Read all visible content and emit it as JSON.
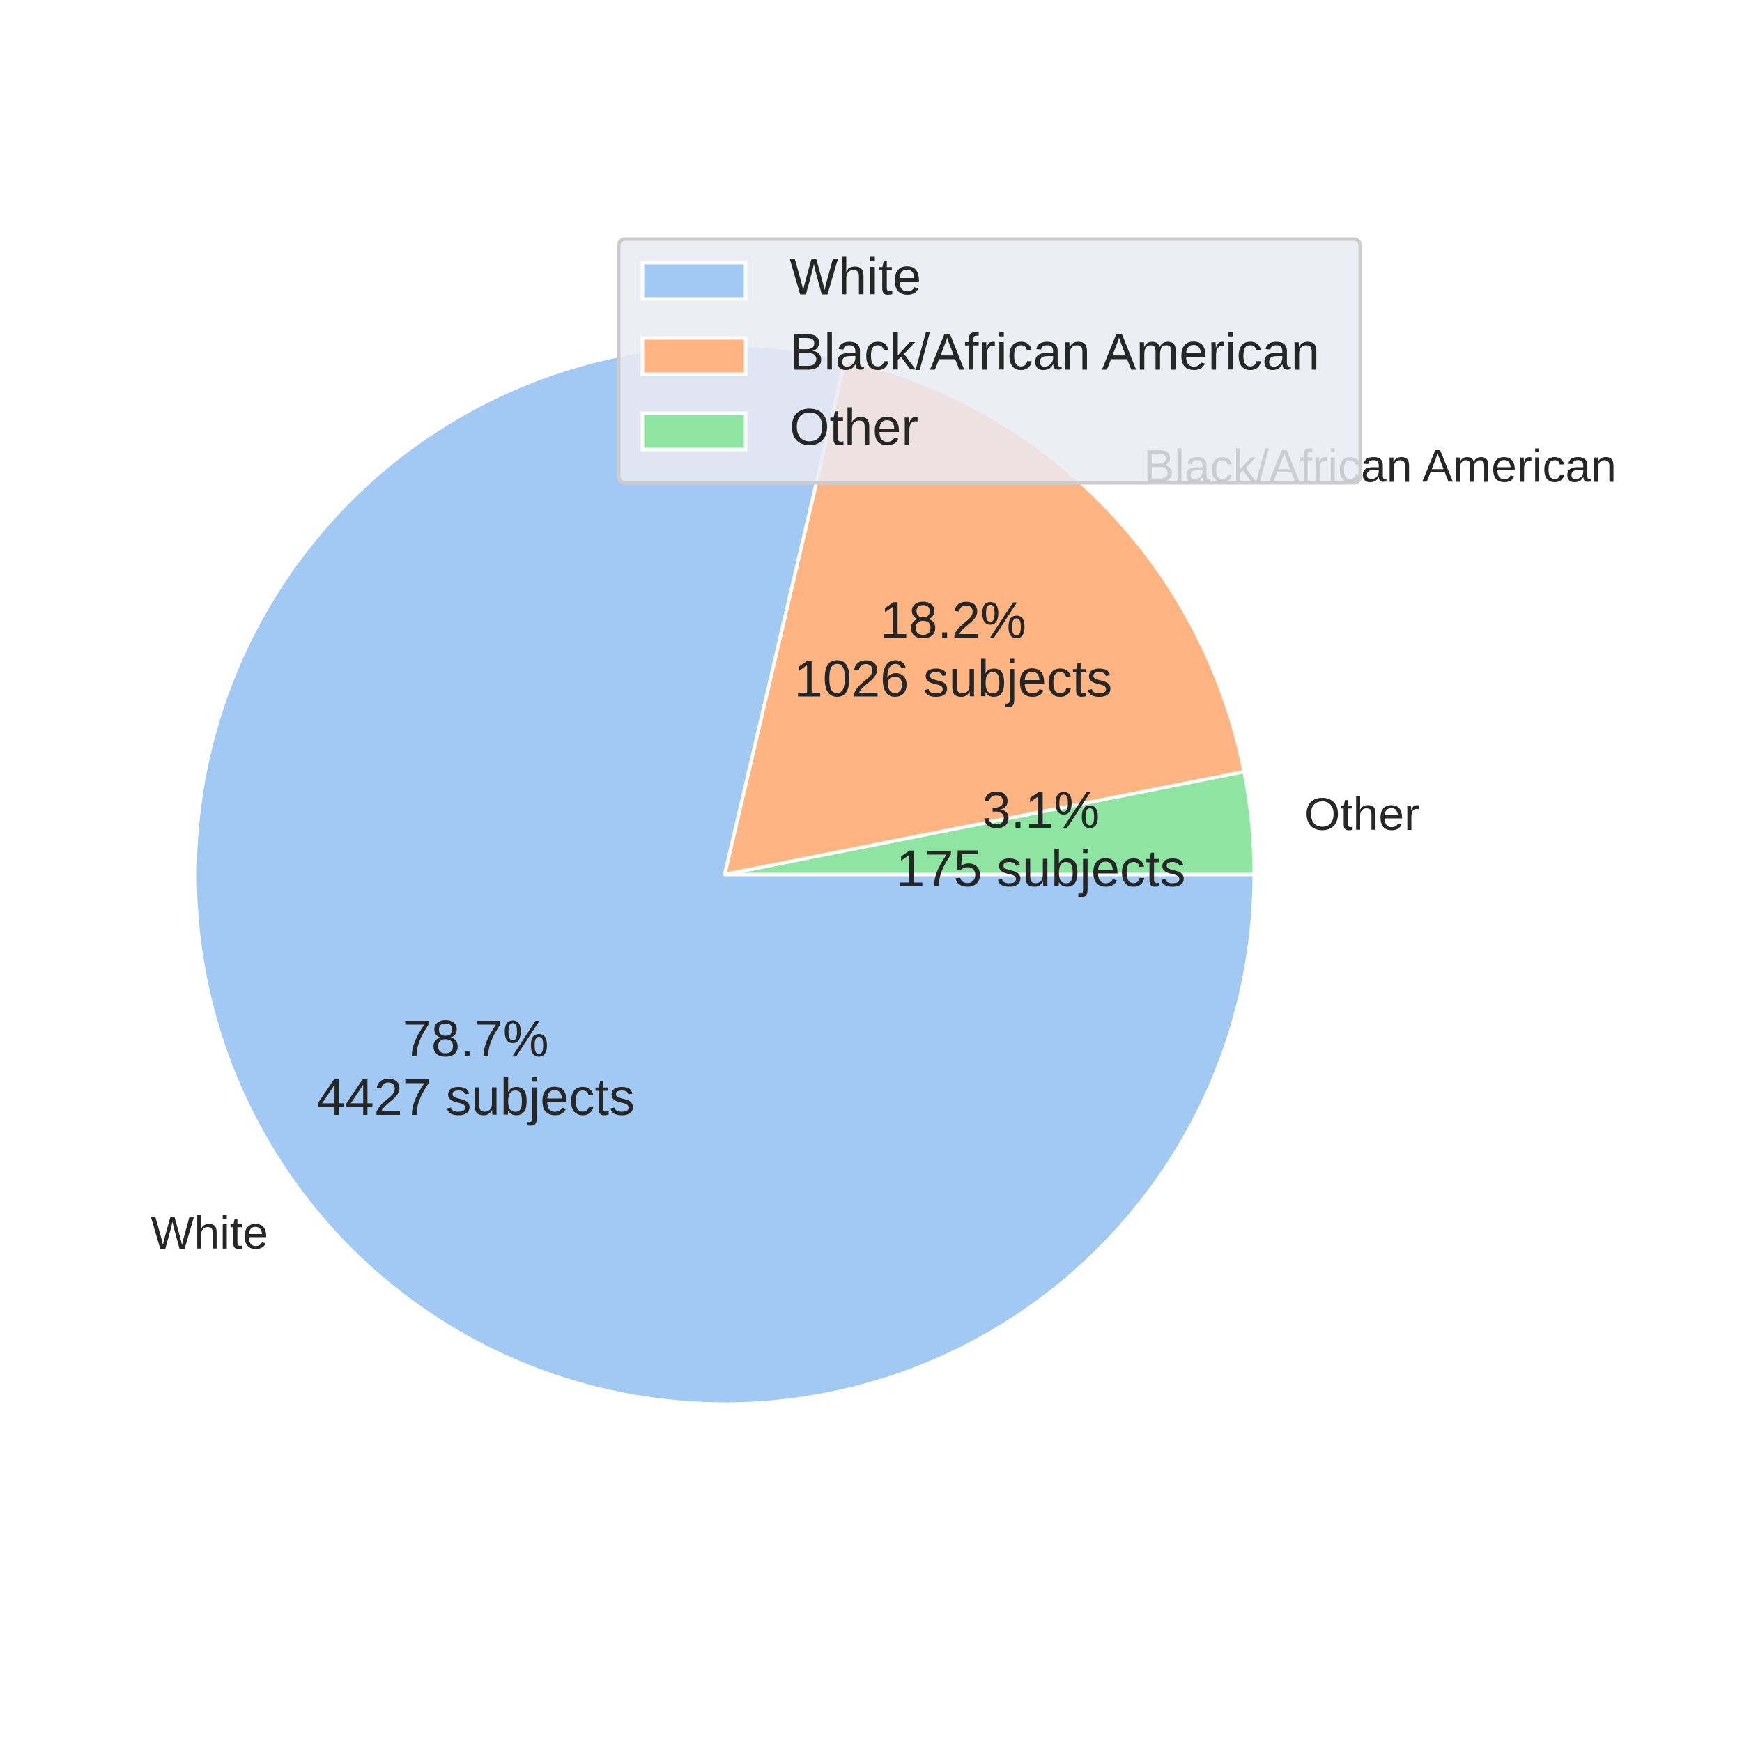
{
  "chart_data": {
    "type": "pie",
    "slices": [
      {
        "label": "White",
        "value": 4427,
        "percent_text": "78.7%",
        "count_text": "4427 subjects",
        "color": "#a1c9f4"
      },
      {
        "label": "Black/African American",
        "value": 1026,
        "percent_text": "18.2%",
        "count_text": "1026 subjects",
        "color": "#ffb482"
      },
      {
        "label": "Other",
        "value": 175,
        "percent_text": "3.1%",
        "count_text": "175 subjects",
        "color": "#8de5a1"
      }
    ],
    "direction": "clockwise",
    "start_angle": "3 o'clock",
    "legend": {
      "placement": "upper-center",
      "entries": [
        "White",
        "Black/African American",
        "Other"
      ]
    },
    "title": ""
  }
}
